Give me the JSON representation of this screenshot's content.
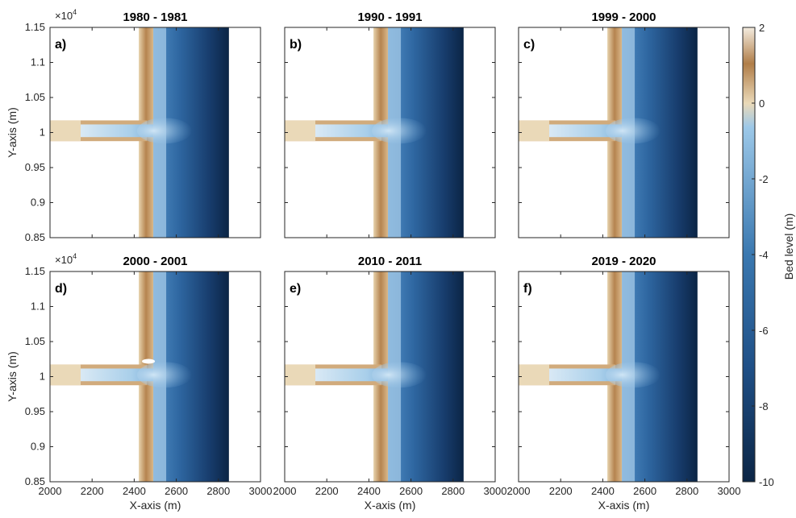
{
  "chart_data": {
    "type": "heatmap",
    "colorbar": {
      "label": "Bed level (m)",
      "ticks": [
        2,
        0,
        -2,
        -4,
        -6,
        -8,
        -10
      ],
      "range": [
        -10,
        2
      ],
      "colors": [
        "#0b2545",
        "#1f4f86",
        "#3a78b0",
        "#9cc8e8",
        "#ead9b8",
        "#b07d48",
        "#f4ecdf"
      ]
    },
    "panels": [
      {
        "title": "1980 - 1981",
        "label": "a)"
      },
      {
        "title": "1990 - 1991",
        "label": "b)"
      },
      {
        "title": "1999 - 2000",
        "label": "c)"
      },
      {
        "title": "2000 - 2001",
        "label": "d)"
      },
      {
        "title": "2010 - 2011",
        "label": "e)"
      },
      {
        "title": "2019 - 2020",
        "label": "f)"
      }
    ],
    "xlabel": "X-axis (m)",
    "ylabel": "Y-axis (m)",
    "xlim": [
      2000,
      3000
    ],
    "ylim": [
      8500,
      11500
    ],
    "xticks": [
      "2000",
      "2200",
      "2400",
      "2600",
      "2800",
      "3000"
    ],
    "yticks": [
      "1.15",
      "1.1",
      "1.05",
      "1",
      "0.95",
      "0.9",
      "0.85"
    ],
    "y_exponent": "×10",
    "y_exponent_power": "4",
    "features": {
      "channel_x_range": [
        2000,
        2450
      ],
      "channel_y_range": [
        9900,
        10150
      ],
      "shoreline_x": 2460,
      "offshore_edge_x": 2850
    }
  }
}
